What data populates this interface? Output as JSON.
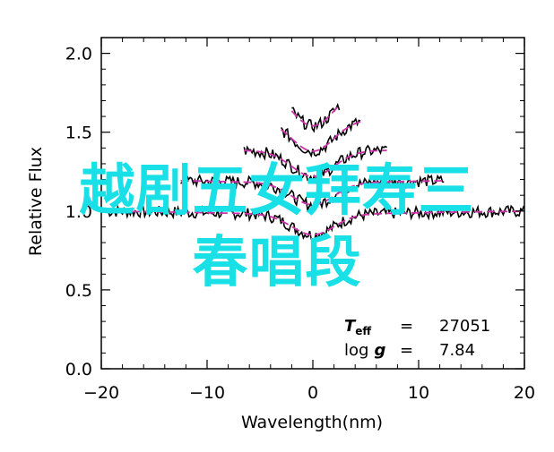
{
  "chart_data": {
    "type": "line",
    "xlabel": "Wavelength(nm)",
    "ylabel": "Relative Flux",
    "xlim": [
      -20,
      20
    ],
    "ylim": [
      0.0,
      2.1
    ],
    "xticks": [
      "−20",
      "−10",
      "0",
      "10",
      "20"
    ],
    "yticks": [
      "0.0",
      "0.5",
      "1.0",
      "1.5",
      "2.0"
    ],
    "grid": false,
    "series": [
      {
        "offset": 0.0,
        "xmin": -19.5,
        "xmax": 20,
        "depth": 0.13,
        "width": 2.0,
        "color": "#000000",
        "model_color": "#cc33aa"
      },
      {
        "offset": 0.2,
        "xmin": -12.5,
        "xmax": 12.5,
        "depth": 0.14,
        "width": 2.0,
        "color": "#000000",
        "model_color": "#cc33aa"
      },
      {
        "offset": 0.4,
        "xmin": -6.5,
        "xmax": 7.0,
        "depth": 0.16,
        "width": 2.0,
        "color": "#000000",
        "model_color": "#cc33aa"
      },
      {
        "offset": 0.6,
        "xmin": -3.0,
        "xmax": 4.5,
        "depth": 0.2,
        "width": 2.0,
        "color": "#000000",
        "model_color": "#cc33aa"
      },
      {
        "offset": 0.8,
        "xmin": -2.0,
        "xmax": 2.5,
        "depth": 0.24,
        "width": 2.0,
        "color": "#000000",
        "model_color": "#cc33aa"
      }
    ],
    "annotations": {
      "teff_label": "T",
      "teff_sub": "eff",
      "teff_eq": "=",
      "teff_value": "27051",
      "logg_label": "log",
      "logg_g": "g",
      "logg_eq": "=",
      "logg_value": "7.84"
    }
  },
  "overlay": {
    "line1": "越剧五女拜寿三",
    "line2": "春唱段"
  }
}
